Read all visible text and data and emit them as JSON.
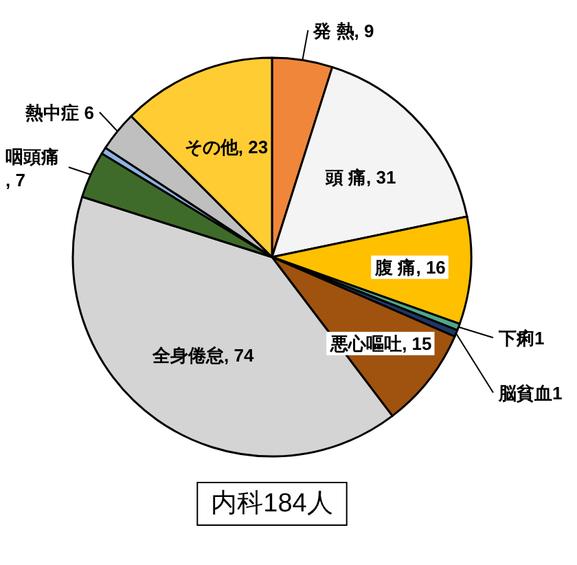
{
  "chart_data": {
    "type": "pie",
    "categories": [
      "発 熱",
      "頭 痛",
      "腹 痛",
      "下痢",
      "脳貧血",
      "悪心嘔吐",
      "全身倦怠",
      "咽頭痛",
      null,
      "熱中症",
      "その他"
    ],
    "values": [
      9,
      31,
      16,
      1,
      1,
      15,
      74,
      7,
      1,
      6,
      23
    ],
    "value_labels": [
      ", 9",
      ", 31",
      ", 16",
      "1",
      "1",
      ", 15",
      ", 74",
      ", 7",
      null,
      " 6",
      ", 23"
    ],
    "colors": [
      "#f0863a",
      "#f4f4f4",
      "#ffc000",
      "#4fa88a",
      "#1f3864",
      "#a0520f",
      "#d4d4d4",
      "#3f6b2a",
      "#8eb4e3",
      "#bfbfbf",
      "#ffcc33"
    ],
    "annotations": [
      "内科184人"
    ]
  }
}
